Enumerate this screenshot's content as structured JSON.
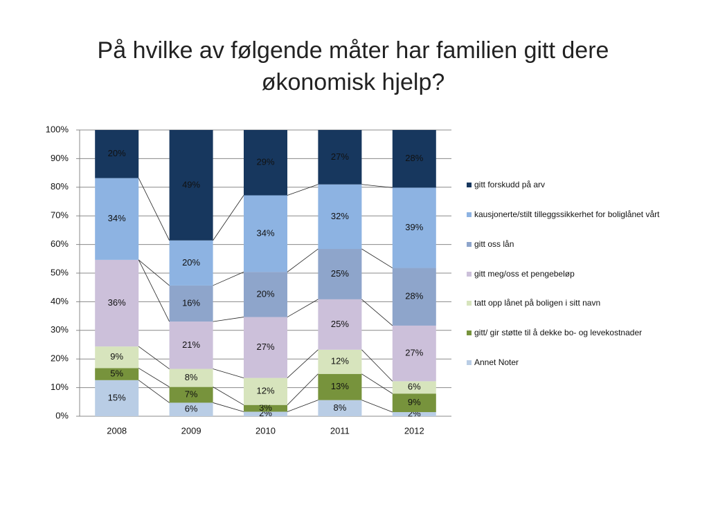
{
  "chart_data": {
    "type": "bar",
    "stacking": "percent",
    "title": "På hvilke av følgende måter har familien gitt dere økonomisk hjelp?",
    "categories": [
      "2008",
      "2009",
      "2010",
      "2011",
      "2012"
    ],
    "ylim": [
      0,
      100
    ],
    "yticks": [
      {
        "value": 0,
        "label": "0%"
      },
      {
        "value": 10,
        "label": "10%"
      },
      {
        "value": 20,
        "label": "20%"
      },
      {
        "value": 30,
        "label": "30%"
      },
      {
        "value": 40,
        "label": "40%"
      },
      {
        "value": 50,
        "label": "50%"
      },
      {
        "value": 60,
        "label": "60%"
      },
      {
        "value": 70,
        "label": "70%"
      },
      {
        "value": 80,
        "label": "80%"
      },
      {
        "value": 90,
        "label": "90%"
      },
      {
        "value": 100,
        "label": "100%"
      }
    ],
    "series": [
      {
        "name": "Annet Noter",
        "color": "#b9cde5",
        "values": [
          15,
          6,
          2,
          8,
          2
        ],
        "value_labels": [
          "15%",
          "6%",
          "2%",
          "8%",
          "2%"
        ]
      },
      {
        "name": "gitt/ gir støtte til å dekke bo- og levekostnader",
        "color": "#77933c",
        "values": [
          5,
          7,
          3,
          13,
          9
        ],
        "value_labels": [
          "5%",
          "7%",
          "3%",
          "13%",
          "9%"
        ]
      },
      {
        "name": "tatt opp lånet på boligen i sitt navn",
        "color": "#d7e4bd",
        "values": [
          9,
          8,
          12,
          12,
          6
        ],
        "value_labels": [
          "9%",
          "8%",
          "12%",
          "12%",
          "6%"
        ]
      },
      {
        "name": "gitt meg/oss et pengebeløp",
        "color": "#ccc0da",
        "values": [
          36,
          21,
          27,
          25,
          27
        ],
        "value_labels": [
          "36%",
          "21%",
          "27%",
          "25%",
          "27%"
        ]
      },
      {
        "name": "gitt oss lån",
        "color": "#8ea5cb",
        "values": [
          null,
          16,
          20,
          25,
          28
        ],
        "value_labels": [
          null,
          "16%",
          "20%",
          "25%",
          "28%"
        ]
      },
      {
        "name": "kausjonerte/stilt tilleggssikkerhet for boliglånet vårt",
        "color": "#8db3e2",
        "values": [
          34,
          20,
          34,
          32,
          39
        ],
        "value_labels": [
          "34%",
          "20%",
          "34%",
          "32%",
          "39%"
        ]
      },
      {
        "name": "gitt forskudd på arv",
        "color": "#17375e",
        "values": [
          20,
          49,
          29,
          27,
          28
        ],
        "value_labels": [
          "20%",
          "49%",
          "29%",
          "27%",
          "28%"
        ]
      }
    ]
  }
}
